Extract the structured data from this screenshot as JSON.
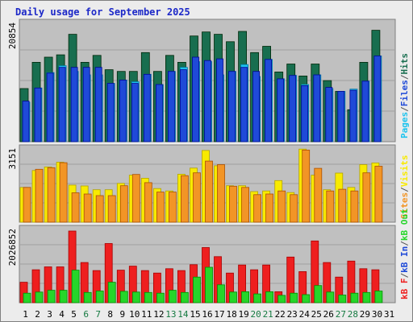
{
  "title": "Daily usage for September 2025",
  "colors": {
    "hits": "#186e4f",
    "files": "#1ec3ee",
    "pages": "#1f4ad8",
    "visits": "#f8ea00",
    "sites": "#f29526",
    "kbin": "#ee1f1f",
    "kbout": "#26d62a",
    "weekend_label": "#157a41",
    "weekday_label": "#000000"
  },
  "chart_data": [
    {
      "type": "bar",
      "panel": "hits_files_pages",
      "max_label": "20854",
      "right_label": {
        "parts": [
          {
            "text": "Pages",
            "color": "#1ec3ee"
          },
          {
            "text": "/",
            "color": "#555555"
          },
          {
            "text": "Files",
            "color": "#1f4ad8"
          },
          {
            "text": "/",
            "color": "#555555"
          },
          {
            "text": "Hits",
            "color": "#186e4f"
          }
        ]
      },
      "ylim": [
        0,
        20854
      ],
      "categories": [
        "1",
        "2",
        "3",
        "4",
        "5",
        "6",
        "7",
        "8",
        "9",
        "10",
        "11",
        "12",
        "13",
        "14",
        "15",
        "16",
        "17",
        "18",
        "19",
        "20",
        "21",
        "22",
        "23",
        "24",
        "25",
        "26",
        "27",
        "28",
        "29",
        "30",
        "31"
      ],
      "series": [
        {
          "name": "Hits",
          "values": [
            9300,
            13900,
            14800,
            15200,
            18800,
            13900,
            15100,
            12600,
            12300,
            12300,
            15600,
            12300,
            15100,
            13900,
            18500,
            19200,
            18800,
            17500,
            19300,
            15600,
            16700,
            12200,
            13600,
            11500,
            13600,
            10700,
            8800,
            5600,
            13900,
            19500,
            0
          ]
        },
        {
          "name": "Files",
          "values": [
            6900,
            9400,
            12100,
            13300,
            12300,
            11700,
            11700,
            10200,
            10800,
            10500,
            11800,
            10000,
            12300,
            13000,
            14000,
            14000,
            11700,
            12300,
            13500,
            11400,
            14400,
            11000,
            11600,
            10000,
            11700,
            9300,
            8800,
            9200,
            10600,
            15000,
            0
          ]
        },
        {
          "name": "Pages",
          "values": [
            7100,
            9400,
            12000,
            13000,
            13000,
            13000,
            13000,
            10200,
            10800,
            10200,
            11800,
            10000,
            12300,
            12600,
            14800,
            14200,
            14500,
            12300,
            13000,
            12300,
            14400,
            11000,
            11600,
            9800,
            11700,
            9500,
            8800,
            9000,
            10600,
            15000,
            0
          ]
        }
      ]
    },
    {
      "type": "bar",
      "panel": "visits_sites",
      "max_label": "3151",
      "right_label": {
        "parts": [
          {
            "text": "Sites",
            "color": "#f29526"
          },
          {
            "text": "/",
            "color": "#555555"
          },
          {
            "text": "Visits",
            "color": "#f8ea00"
          }
        ]
      },
      "ylim": [
        0,
        3151
      ],
      "categories": [
        "1",
        "2",
        "3",
        "4",
        "5",
        "6",
        "7",
        "8",
        "9",
        "10",
        "11",
        "12",
        "13",
        "14",
        "15",
        "16",
        "17",
        "18",
        "19",
        "20",
        "21",
        "22",
        "23",
        "24",
        "25",
        "26",
        "27",
        "28",
        "29",
        "30",
        "31"
      ],
      "series": [
        {
          "name": "Visits",
          "values": [
            1480,
            2200,
            2350,
            2550,
            1580,
            1540,
            1380,
            1380,
            1650,
            2000,
            1870,
            1430,
            1330,
            2040,
            2300,
            3050,
            2400,
            1550,
            1550,
            1300,
            1330,
            1770,
            1260,
            3110,
            2000,
            1380,
            2090,
            1480,
            2450,
            2520,
            0
          ]
        },
        {
          "name": "Sites",
          "values": [
            1480,
            2250,
            2320,
            2530,
            1250,
            1200,
            1130,
            1130,
            1550,
            2030,
            1680,
            1280,
            1280,
            1980,
            2100,
            2600,
            2450,
            1530,
            1480,
            1170,
            1200,
            1330,
            1170,
            3070,
            2290,
            1330,
            1400,
            1330,
            2100,
            2380,
            0
          ]
        }
      ]
    },
    {
      "type": "bar",
      "panel": "kbin_kbout",
      "max_label": "2026852",
      "right_label": {
        "parts": [
          {
            "text": "kB F",
            "color": "#ee1f1f"
          },
          {
            "text": "/",
            "color": "#555555"
          },
          {
            "text": "kB In",
            "color": "#1f4ad8"
          },
          {
            "text": "/",
            "color": "#555555"
          },
          {
            "text": "kB Out",
            "color": "#26d62a"
          }
        ]
      },
      "ylim": [
        0,
        2026852
      ],
      "categories": [
        "1",
        "2",
        "3",
        "4",
        "5",
        "6",
        "7",
        "8",
        "9",
        "10",
        "11",
        "12",
        "13",
        "14",
        "15",
        "16",
        "17",
        "18",
        "19",
        "20",
        "21",
        "22",
        "23",
        "24",
        "25",
        "26",
        "27",
        "28",
        "29",
        "30",
        "31"
      ],
      "series": [
        {
          "name": "kB F",
          "values": [
            560000,
            900000,
            980000,
            980000,
            1960000,
            1100000,
            880000,
            1620000,
            890000,
            1000000,
            880000,
            810000,
            930000,
            880000,
            1040000,
            1510000,
            1260000,
            810000,
            1030000,
            900000,
            1030000,
            300000,
            1250000,
            850000,
            1690000,
            1100000,
            700000,
            1140000,
            930000,
            900000,
            0
          ]
        },
        {
          "name": "kB Out",
          "values": [
            260000,
            290000,
            340000,
            340000,
            890000,
            280000,
            320000,
            560000,
            310000,
            290000,
            280000,
            260000,
            340000,
            280000,
            700000,
            970000,
            490000,
            290000,
            300000,
            240000,
            300000,
            200000,
            260000,
            220000,
            470000,
            290000,
            210000,
            260000,
            280000,
            320000,
            0
          ]
        }
      ]
    }
  ],
  "weekend_days": [
    6,
    7,
    13,
    14,
    20,
    21,
    27,
    28
  ]
}
